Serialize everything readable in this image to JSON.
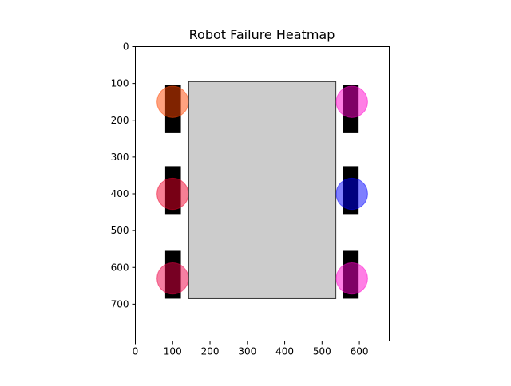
{
  "chart_data": {
    "type": "scatter",
    "title": "Robot Failure Heatmap",
    "xlabel": "",
    "ylabel": "",
    "xlim": [
      0,
      680
    ],
    "ylim": [
      800,
      0
    ],
    "y_inverted": true,
    "grid": false,
    "x_ticks": [
      0,
      100,
      200,
      300,
      400,
      500,
      600
    ],
    "y_ticks": [
      0,
      100,
      200,
      300,
      400,
      500,
      600,
      700
    ],
    "robot_body": {
      "x0": 143,
      "x1": 537,
      "y0": 95,
      "y1": 685,
      "fill": "#cccccc",
      "stroke": "#333333"
    },
    "wheels": [
      {
        "x0": 80,
        "x1": 122,
        "y0": 105,
        "y1": 235
      },
      {
        "x0": 80,
        "x1": 122,
        "y0": 325,
        "y1": 455
      },
      {
        "x0": 80,
        "x1": 122,
        "y0": 555,
        "y1": 685
      },
      {
        "x0": 556,
        "x1": 598,
        "y0": 105,
        "y1": 235
      },
      {
        "x0": 556,
        "x1": 598,
        "y0": 325,
        "y1": 455
      },
      {
        "x0": 556,
        "x1": 598,
        "y0": 555,
        "y1": 685
      }
    ],
    "wheel_color": "#000000",
    "markers": [
      {
        "x": 100,
        "y": 150,
        "r": 42,
        "color": "#ff4500"
      },
      {
        "x": 100,
        "y": 400,
        "r": 42,
        "color": "#f0002a"
      },
      {
        "x": 100,
        "y": 630,
        "r": 42,
        "color": "#ee0045"
      },
      {
        "x": 580,
        "y": 150,
        "r": 42,
        "color": "#ff00cc"
      },
      {
        "x": 580,
        "y": 400,
        "r": 42,
        "color": "#0000ff"
      },
      {
        "x": 580,
        "y": 630,
        "r": 42,
        "color": "#ff00cc"
      }
    ],
    "marker_opacity": 0.5
  }
}
